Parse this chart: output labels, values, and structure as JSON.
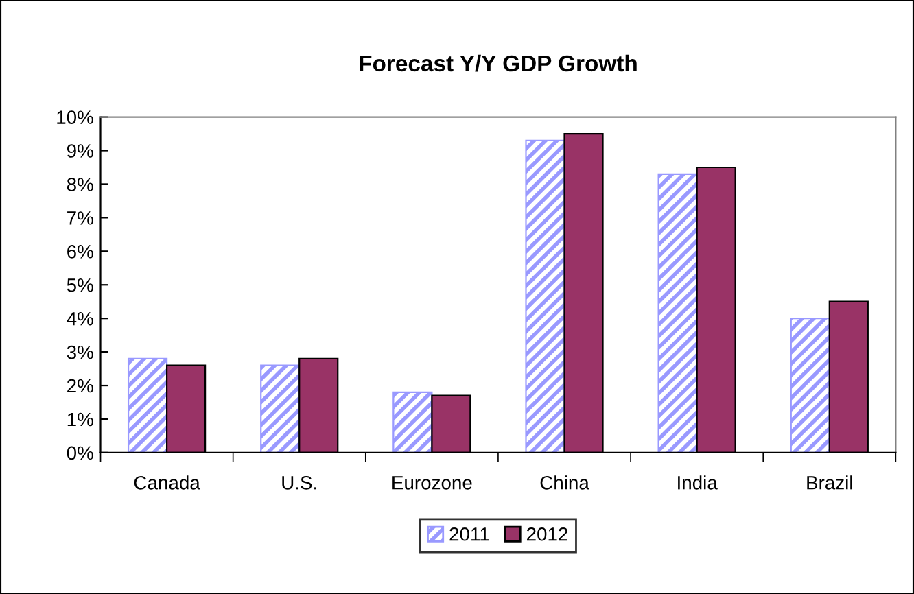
{
  "chart_data": {
    "type": "bar",
    "title": "Forecast Y/Y GDP Growth",
    "categories": [
      "Canada",
      "U.S.",
      "Eurozone",
      "China",
      "India",
      "Brazil"
    ],
    "series": [
      {
        "name": "2011",
        "color": "#9999ff",
        "values": [
          2.8,
          2.6,
          1.8,
          9.3,
          8.3,
          4.0
        ]
      },
      {
        "name": "2012",
        "color": "#993366",
        "values": [
          2.6,
          2.8,
          1.7,
          9.5,
          8.5,
          4.5
        ]
      }
    ],
    "ylim": [
      0,
      10
    ],
    "yticks": [
      {
        "value": 0,
        "label": "0%"
      },
      {
        "value": 1,
        "label": "1%"
      },
      {
        "value": 2,
        "label": "2%"
      },
      {
        "value": 3,
        "label": "3%"
      },
      {
        "value": 4,
        "label": "4%"
      },
      {
        "value": 5,
        "label": "5%"
      },
      {
        "value": 6,
        "label": "6%"
      },
      {
        "value": 7,
        "label": "7%"
      },
      {
        "value": 8,
        "label": "8%"
      },
      {
        "value": 9,
        "label": "9%"
      },
      {
        "value": 10,
        "label": "10%"
      }
    ],
    "grid": false,
    "legend": "bottom"
  }
}
